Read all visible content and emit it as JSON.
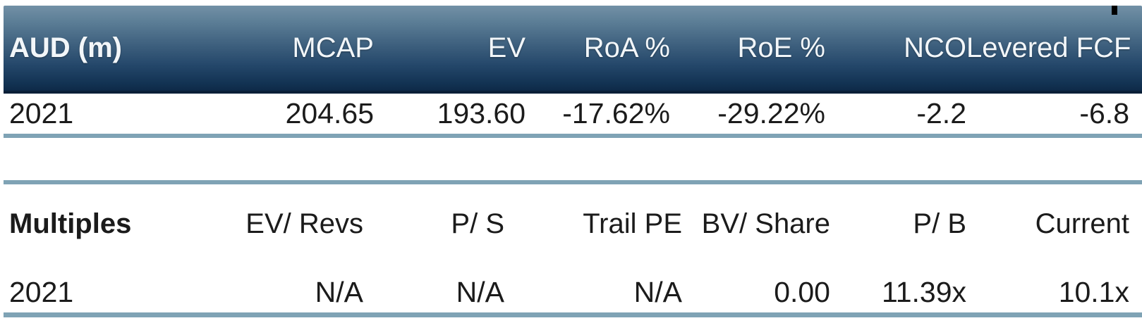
{
  "page": {
    "background": "#ffffff",
    "tick_mark": {
      "color": "#000000"
    }
  },
  "colors": {
    "header_gradient_top": "#7290a6",
    "header_gradient_bottom": "#0e2947",
    "header_bottom_border": "#0a2038",
    "divider": "#7fa3b5",
    "header_text": "#f2f6f9",
    "body_text": "#1b1b1b"
  },
  "financials_table": {
    "unit_label": "AUD (m)",
    "columns": [
      "MCAP",
      "EV",
      "RoA %",
      "RoE %",
      "NCO",
      "Levered FCF"
    ],
    "rows": [
      {
        "year": "2021",
        "values": [
          "204.65",
          "193.60",
          "-17.62%",
          "-29.22%",
          "-2.2",
          "-6.8"
        ]
      }
    ]
  },
  "multiples_table": {
    "section_label": "Multiples",
    "columns": [
      "EV/ Revs",
      "P/ S",
      "Trail PE",
      "BV/ Share",
      "P/ B",
      "Current"
    ],
    "rows": [
      {
        "year": "2021",
        "values": [
          "N/A",
          "N/A",
          "N/A",
          "0.00",
          "11.39x",
          "10.1x"
        ]
      }
    ]
  }
}
